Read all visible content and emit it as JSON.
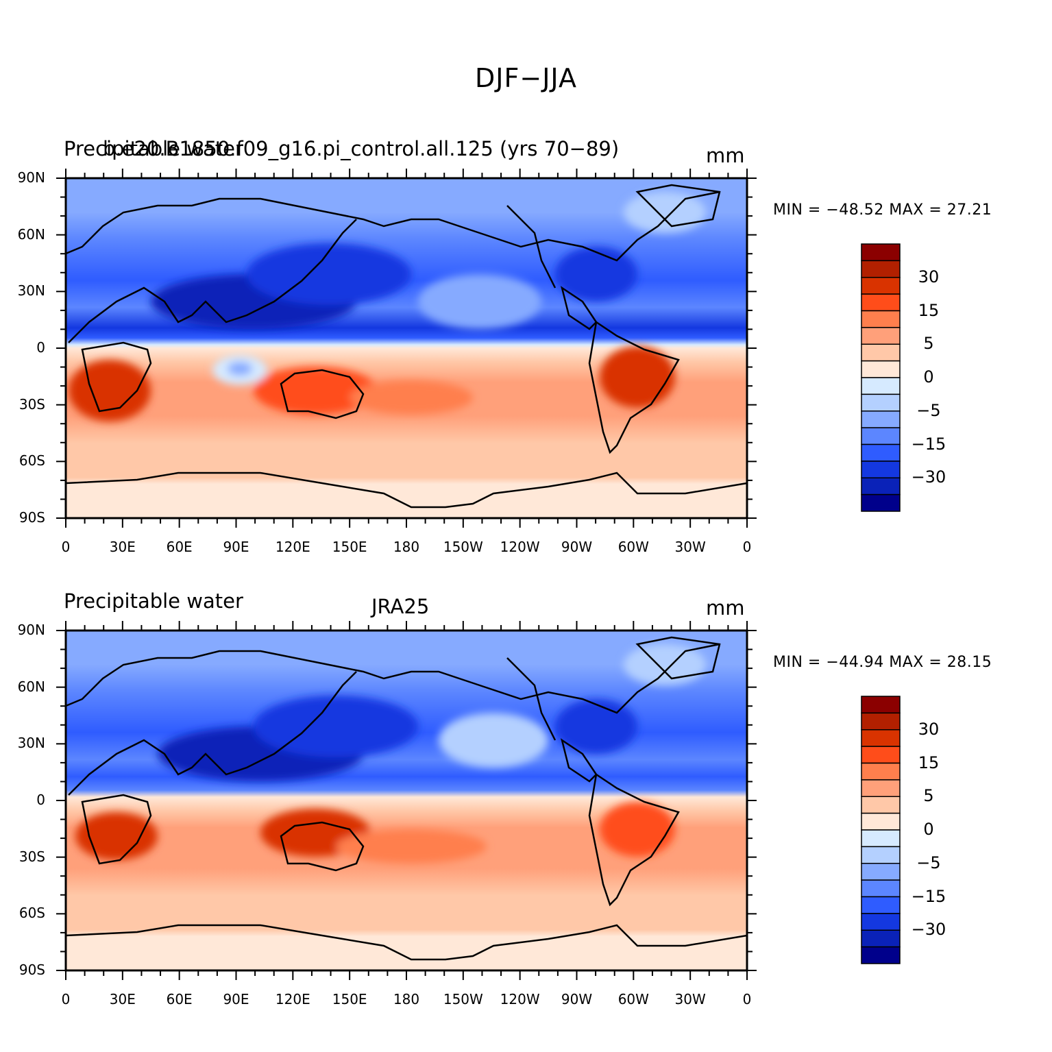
{
  "title": "DJF−JJA",
  "units": "mm",
  "colorbar": {
    "colors": [
      "#8b0000",
      "#b22000",
      "#d93300",
      "#ff4d1a",
      "#ff7f4d",
      "#ffa07a",
      "#ffc8a8",
      "#ffe8d8",
      "#d6eaff",
      "#b4d0ff",
      "#86aaff",
      "#5c86ff",
      "#2f5cff",
      "#1438e0",
      "#0a22b8",
      "#00008b"
    ],
    "labels": [
      "30",
      "15",
      "5",
      "0",
      "−5",
      "−15",
      "−30"
    ]
  },
  "x_tick_labels": [
    "0",
    "30E",
    "60E",
    "90E",
    "120E",
    "150E",
    "180",
    "150W",
    "120W",
    "90W",
    "60W",
    "30W",
    "0"
  ],
  "y_tick_labels": [
    "90N",
    "60N",
    "30N",
    "0",
    "30S",
    "60S",
    "90S"
  ],
  "panels": [
    {
      "left_title": "Precipitable water",
      "center_title": "b.e20.B1850.f09_g16.pi_control.all.125 (yrs 70−89)",
      "right_title": "mm",
      "minmax": "MIN = −48.52  MAX =  27.21"
    },
    {
      "left_title": "Precipitable water",
      "center_title": "JRA25",
      "right_title": "mm",
      "minmax": "MIN = −44.94  MAX =  28.15"
    }
  ],
  "chart_data": [
    {
      "type": "heatmap",
      "title": "DJF−JJA",
      "subtitle": "b.e20.B1850.f09_g16.pi_control.all.125 (yrs 70−89)",
      "variable": "Precipitable water",
      "units": "mm",
      "xlim": [
        0,
        360
      ],
      "ylim": [
        -90,
        90
      ],
      "min": -48.52,
      "max": 27.21,
      "zonal_pattern": [
        {
          "lat": 80,
          "value": -8
        },
        {
          "lat": 60,
          "value": -15
        },
        {
          "lat": 40,
          "value": -25
        },
        {
          "lat": 20,
          "value": -18
        },
        {
          "lat": 5,
          "value": -5
        },
        {
          "lat": -10,
          "value": 8
        },
        {
          "lat": -25,
          "value": 12
        },
        {
          "lat": -45,
          "value": 6
        },
        {
          "lat": -70,
          "value": 3
        },
        {
          "lat": -85,
          "value": 1
        }
      ]
    },
    {
      "type": "heatmap",
      "title": "DJF−JJA",
      "subtitle": "JRA25",
      "variable": "Precipitable water",
      "units": "mm",
      "xlim": [
        0,
        360
      ],
      "ylim": [
        -90,
        90
      ],
      "min": -44.94,
      "max": 28.15,
      "zonal_pattern": [
        {
          "lat": 80,
          "value": -8
        },
        {
          "lat": 60,
          "value": -15
        },
        {
          "lat": 40,
          "value": -25
        },
        {
          "lat": 20,
          "value": -16
        },
        {
          "lat": 5,
          "value": -4
        },
        {
          "lat": -10,
          "value": 9
        },
        {
          "lat": -25,
          "value": 12
        },
        {
          "lat": -45,
          "value": 6
        },
        {
          "lat": -70,
          "value": 3
        },
        {
          "lat": -85,
          "value": 1
        }
      ]
    }
  ]
}
